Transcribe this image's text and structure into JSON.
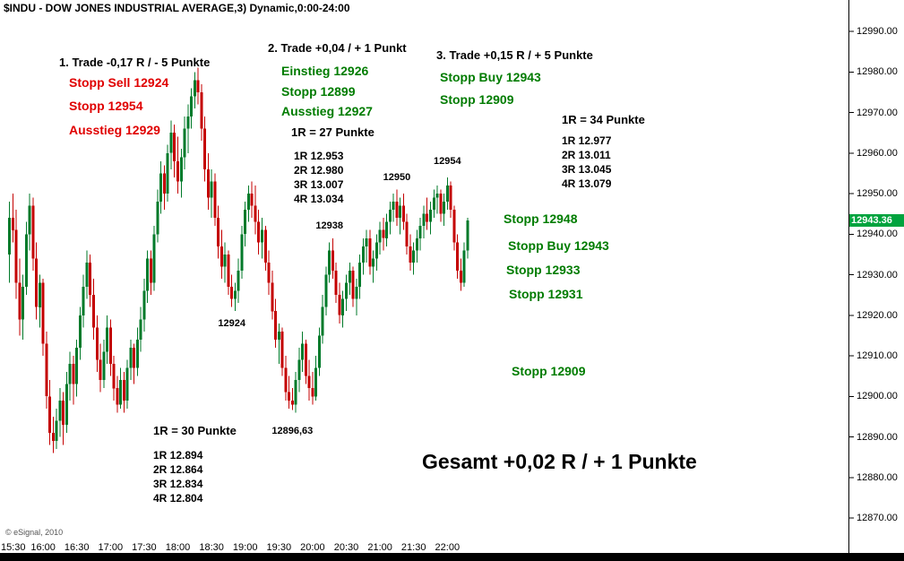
{
  "window": {
    "title": "$INDU - DOW JONES INDUSTRIAL AVERAGE,3) Dynamic,0:00-24:00",
    "watermark": "© eSignal, 2010"
  },
  "price_badge": "12943.36",
  "summary": "Gesamt +0,02 R / + 1 Punkte",
  "trades": {
    "trade1": {
      "header": "1. Trade -0,17 R / - 5 Punkte",
      "stopp_sell": "Stopp Sell 12924",
      "stopp": "Stopp 12954",
      "ausstieg": "Ausstieg 12929",
      "risk": "1R = 30 Punkte",
      "targets": [
        "1R 12.894",
        "2R 12.864",
        "3R 12.834",
        "4R 12.804"
      ]
    },
    "trade2": {
      "header": "2. Trade +0,04 / + 1 Punkt",
      "einstieg": "Einstieg 12926",
      "stopp": "Stopp 12899",
      "ausstieg": "Ausstieg 12927",
      "risk": "1R = 27 Punkte",
      "targets": [
        "1R 12.953",
        "2R 12.980",
        "3R 13.007",
        "4R 13.034"
      ]
    },
    "trade3": {
      "header": "3. Trade +0,15 R / + 5 Punkte",
      "stopp_buy": "Stopp Buy 12943",
      "stopp": "Stopp 12909",
      "risk": "1R = 34 Punkte",
      "targets": [
        "1R 12.977",
        "2R 13.011",
        "3R 13.045",
        "4R 13.079"
      ],
      "trailing_stops": [
        "Stopp 12948",
        "Stopp Buy 12943",
        "Stopp 12933",
        "Stopp 12931",
        "Stopp 12909"
      ]
    }
  },
  "chart_data": {
    "type": "candlestick",
    "symbol": "$INDU",
    "title": "$INDU - DOW JONES INDUSTRIAL AVERAGE,3) Dynamic,0:00-24:00",
    "timeframe_minutes": 3,
    "session_start": "15:30",
    "last_price": 12943.36,
    "ylim": [
      12865,
      12995
    ],
    "grid": false,
    "colors": {
      "up": "#007a2a",
      "down": "#c40000",
      "badge": "#00a33e"
    },
    "y_ticks": [
      12990,
      12980,
      12970,
      12960,
      12950,
      12940,
      12930,
      12920,
      12910,
      12900,
      12890,
      12880,
      12870
    ],
    "x_ticks": [
      "15:30",
      "16:00",
      "16:30",
      "17:00",
      "17:30",
      "18:00",
      "18:30",
      "19:00",
      "19:30",
      "20:00",
      "20:30",
      "21:00",
      "21:30",
      "22:00"
    ],
    "price_annotations": [
      {
        "label": "12954",
        "index": 130,
        "price": 12958
      },
      {
        "label": "12950",
        "index": 115,
        "price": 12954
      },
      {
        "label": "12938",
        "index": 95,
        "price": 12942
      },
      {
        "label": "12924",
        "index": 66,
        "price": 12918
      },
      {
        "label": "12896,63",
        "index": 84,
        "price": 12891.5
      }
    ],
    "candles": [
      [
        12935,
        12948,
        12928,
        12944
      ],
      [
        12944,
        12950,
        12938,
        12941
      ],
      [
        12941,
        12946,
        12924,
        12928
      ],
      [
        12928,
        12934,
        12915,
        12919
      ],
      [
        12919,
        12930,
        12914,
        12927
      ],
      [
        12927,
        12943,
        12925,
        12940
      ],
      [
        12940,
        12950,
        12936,
        12947
      ],
      [
        12947,
        12949,
        12931,
        12934
      ],
      [
        12934,
        12938,
        12919,
        12922
      ],
      [
        12922,
        12930,
        12917,
        12928
      ],
      [
        12928,
        12929,
        12910,
        12913
      ],
      [
        12913,
        12916,
        12897,
        12900
      ],
      [
        12900,
        12904,
        12888,
        12891
      ],
      [
        12891,
        12895,
        12886,
        12889
      ],
      [
        12889,
        12897,
        12887,
        12894
      ],
      [
        12894,
        12902,
        12890,
        12899
      ],
      [
        12899,
        12901,
        12888,
        12893
      ],
      [
        12893,
        12906,
        12891,
        12903
      ],
      [
        12903,
        12911,
        12899,
        12908
      ],
      [
        12908,
        12910,
        12898,
        12903
      ],
      [
        12903,
        12914,
        12900,
        12912
      ],
      [
        12912,
        12922,
        12909,
        12920
      ],
      [
        12920,
        12930,
        12917,
        12927
      ],
      [
        12927,
        12936,
        12924,
        12933
      ],
      [
        12933,
        12935,
        12922,
        12925
      ],
      [
        12925,
        12929,
        12914,
        12917
      ],
      [
        12917,
        12920,
        12906,
        12909
      ],
      [
        12909,
        12913,
        12901,
        12904
      ],
      [
        12904,
        12914,
        12902,
        12911
      ],
      [
        12911,
        12920,
        12908,
        12917
      ],
      [
        12917,
        12919,
        12905,
        12908
      ],
      [
        12908,
        12910,
        12899,
        12902
      ],
      [
        12902,
        12905,
        12896,
        12898
      ],
      [
        12898,
        12907,
        12897,
        12904
      ],
      [
        12904,
        12906,
        12896,
        12899
      ],
      [
        12899,
        12909,
        12897,
        12907
      ],
      [
        12907,
        12914,
        12904,
        12912
      ],
      [
        12912,
        12913,
        12903,
        12907
      ],
      [
        12907,
        12917,
        12905,
        12914
      ],
      [
        12914,
        12922,
        12911,
        12919
      ],
      [
        12919,
        12929,
        12916,
        12926
      ],
      [
        12926,
        12936,
        12923,
        12934
      ],
      [
        12934,
        12936,
        12925,
        12928
      ],
      [
        12928,
        12942,
        12926,
        12940
      ],
      [
        12940,
        12951,
        12938,
        12948
      ],
      [
        12948,
        12958,
        12945,
        12955
      ],
      [
        12955,
        12957,
        12946,
        12950
      ],
      [
        12950,
        12962,
        12948,
        12960
      ],
      [
        12960,
        12968,
        12956,
        12965
      ],
      [
        12965,
        12967,
        12954,
        12958
      ],
      [
        12958,
        12964,
        12950,
        12953
      ],
      [
        12953,
        12961,
        12949,
        12959
      ],
      [
        12959,
        12969,
        12956,
        12966
      ],
      [
        12966,
        12972,
        12960,
        12969
      ],
      [
        12969,
        12976,
        12966,
        12974
      ],
      [
        12974,
        12980,
        12971,
        12978
      ],
      [
        12978,
        12981,
        12972,
        12975
      ],
      [
        12975,
        12977,
        12963,
        12966
      ],
      [
        12966,
        12969,
        12953,
        12956
      ],
      [
        12956,
        12960,
        12946,
        12949
      ],
      [
        12949,
        12956,
        12944,
        12953
      ],
      [
        12953,
        12955,
        12942,
        12944
      ],
      [
        12944,
        12947,
        12934,
        12937
      ],
      [
        12937,
        12941,
        12929,
        12932
      ],
      [
        12932,
        12938,
        12928,
        12935
      ],
      [
        12935,
        12936,
        12925,
        12927
      ],
      [
        12927,
        12930,
        12922,
        12924
      ],
      [
        12924,
        12928,
        12921,
        12926
      ],
      [
        12926,
        12934,
        12923,
        12931
      ],
      [
        12931,
        12942,
        12929,
        12940
      ],
      [
        12940,
        12948,
        12937,
        12946
      ],
      [
        12946,
        12952,
        12943,
        12950
      ],
      [
        12950,
        12953,
        12944,
        12947
      ],
      [
        12947,
        12952,
        12940,
        12943
      ],
      [
        12943,
        12946,
        12935,
        12938
      ],
      [
        12938,
        12944,
        12934,
        12941
      ],
      [
        12941,
        12942,
        12931,
        12933
      ],
      [
        12933,
        12936,
        12925,
        12928
      ],
      [
        12928,
        12931,
        12919,
        12921
      ],
      [
        12921,
        12924,
        12912,
        12914
      ],
      [
        12914,
        12918,
        12908,
        12916
      ],
      [
        12916,
        12917,
        12905,
        12907
      ],
      [
        12907,
        12910,
        12899,
        12901
      ],
      [
        12901,
        12905,
        12897,
        12899
      ],
      [
        12899,
        12902,
        12896.63,
        12898
      ],
      [
        12898,
        12906,
        12896,
        12904
      ],
      [
        12904,
        12912,
        12901,
        12909
      ],
      [
        12909,
        12916,
        12906,
        12913
      ],
      [
        12913,
        12914,
        12903,
        12905
      ],
      [
        12905,
        12909,
        12899,
        12902
      ],
      [
        12902,
        12906,
        12898,
        12900
      ],
      [
        12900,
        12910,
        12899,
        12907
      ],
      [
        12907,
        12917,
        12905,
        12915
      ],
      [
        12915,
        12925,
        12913,
        12922
      ],
      [
        12922,
        12932,
        12920,
        12930
      ],
      [
        12930,
        12938,
        12928,
        12936
      ],
      [
        12936,
        12939,
        12929,
        12931
      ],
      [
        12931,
        12933,
        12923,
        12925
      ],
      [
        12925,
        12928,
        12918,
        12920
      ],
      [
        12920,
        12926,
        12917,
        12924
      ],
      [
        12924,
        12930,
        12921,
        12928
      ],
      [
        12928,
        12933,
        12925,
        12931
      ],
      [
        12931,
        12932,
        12922,
        12924
      ],
      [
        12924,
        12929,
        12920,
        12927
      ],
      [
        12927,
        12935,
        12924,
        12933
      ],
      [
        12933,
        12939,
        12930,
        12937
      ],
      [
        12937,
        12941,
        12933,
        12939
      ],
      [
        12939,
        12941,
        12930,
        12932
      ],
      [
        12932,
        12936,
        12928,
        12934
      ],
      [
        12934,
        12940,
        12931,
        12938
      ],
      [
        12938,
        12943,
        12935,
        12941
      ],
      [
        12941,
        12944,
        12936,
        12939
      ],
      [
        12939,
        12945,
        12937,
        12943
      ],
      [
        12943,
        12948,
        12940,
        12946
      ],
      [
        12946,
        12950,
        12943,
        12948
      ],
      [
        12948,
        12951,
        12942,
        12944
      ],
      [
        12944,
        12949,
        12940,
        12947
      ],
      [
        12947,
        12950,
        12941,
        12943
      ],
      [
        12943,
        12945,
        12935,
        12937
      ],
      [
        12937,
        12940,
        12931,
        12933
      ],
      [
        12933,
        12938,
        12930,
        12936
      ],
      [
        12936,
        12941,
        12933,
        12939
      ],
      [
        12939,
        12944,
        12936,
        12942
      ],
      [
        12942,
        12947,
        12939,
        12945
      ],
      [
        12945,
        12949,
        12941,
        12943
      ],
      [
        12943,
        12948,
        12940,
        12946
      ],
      [
        12946,
        12951,
        12944,
        12949
      ],
      [
        12949,
        12952,
        12945,
        12950
      ],
      [
        12950,
        12951,
        12943,
        12945
      ],
      [
        12945,
        12950,
        12942,
        12948
      ],
      [
        12948,
        12954,
        12946,
        12952
      ],
      [
        12952,
        12953,
        12944,
        12946
      ],
      [
        12946,
        12947,
        12936,
        12938
      ],
      [
        12938,
        12940,
        12929,
        12931
      ],
      [
        12931,
        12934,
        12926,
        12928
      ],
      [
        12928,
        12938,
        12927,
        12936
      ],
      [
        12936,
        12944,
        12934,
        12943.36
      ]
    ]
  }
}
